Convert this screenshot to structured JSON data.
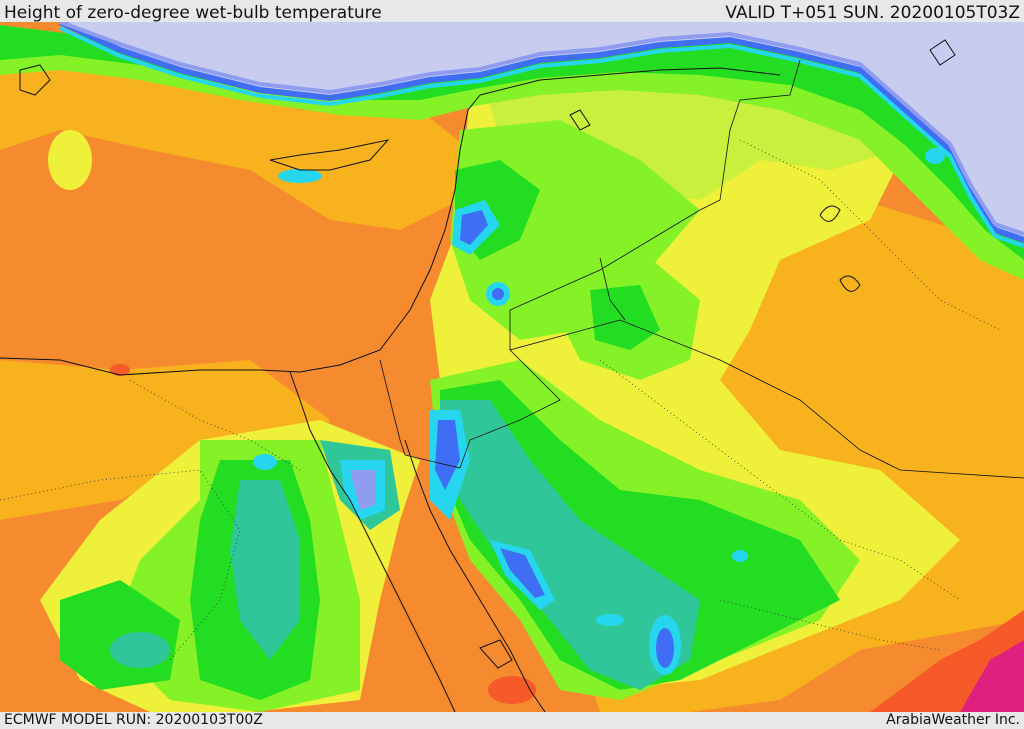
{
  "header": {
    "title": "Height of zero-degree wet-bulb temperature",
    "valid": "VALID T+051 SUN. 20200105T03Z"
  },
  "footer": {
    "model_run": "ECMWF MODEL RUN: 20200103T00Z",
    "credit": "ArabiaWeather Inc."
  },
  "palette": {
    "lowest": "#c8cdf0",
    "very_low": "#8f9cf0",
    "low_blue": "#3f6ef5",
    "cyan": "#25d6ee",
    "teal": "#2fc79a",
    "green": "#22dd22",
    "light_green": "#85f227",
    "yellow_green": "#c8f03c",
    "yellow": "#eef03a",
    "light_orange": "#f8b21e",
    "orange": "#f58a2e",
    "red_orange": "#f55a28",
    "red": "#ee2a40",
    "magenta": "#e0207e"
  }
}
